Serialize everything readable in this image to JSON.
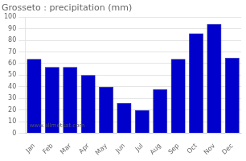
{
  "chart_data": {
    "type": "bar",
    "title": "Grosseto : precipitation (mm)",
    "categories": [
      "Jan",
      "Feb",
      "Mar",
      "Apr",
      "May",
      "Jun",
      "Jul",
      "Aug",
      "Sep",
      "Oct",
      "Nov",
      "Dec"
    ],
    "values": [
      64,
      57,
      57,
      50,
      40,
      26,
      20,
      38,
      64,
      86,
      94,
      65
    ],
    "color": "#0000cc",
    "ylim": [
      0,
      100
    ],
    "yticks": [
      0,
      10,
      20,
      30,
      40,
      50,
      60,
      70,
      80,
      90,
      100
    ],
    "grid": true,
    "annotations": [
      "www.allmetsat.com"
    ]
  }
}
